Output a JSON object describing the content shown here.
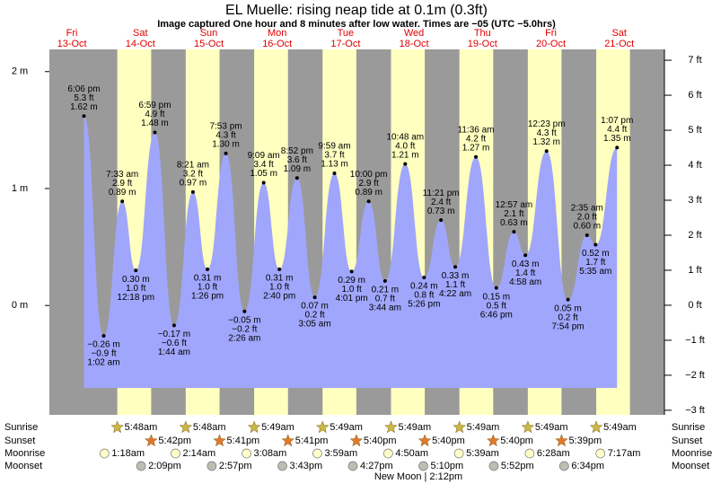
{
  "chart_data": {
    "type": "area",
    "title": "EL Muelle: rising  neap tide at 0.1m (0.3ft)",
    "subtitle": "Image captured One hour and 8 minutes after low water. Times are −05 (UTC −5.0hrs)",
    "ylim": [
      -0.92,
      2.19
    ],
    "yticks": [
      {
        "value": 2,
        "label": "2 m"
      },
      {
        "value": 1,
        "label": "1 m"
      },
      {
        "value": 0,
        "label": "0 m"
      }
    ],
    "y2lim": [
      -3.08,
      7.31
    ],
    "y2ticks": [
      {
        "value": 7,
        "label": "7 ft"
      },
      {
        "value": 6,
        "label": "6 ft"
      },
      {
        "value": 5,
        "label": "5 ft"
      },
      {
        "value": 4,
        "label": "4 ft"
      },
      {
        "value": 3,
        "label": "3 ft"
      },
      {
        "value": 2,
        "label": "2 ft"
      },
      {
        "value": 1,
        "label": "1 ft"
      },
      {
        "value": 0,
        "label": "0 ft"
      },
      {
        "value": -1,
        "label": "−1 ft"
      },
      {
        "value": -2,
        "label": "−2 ft"
      },
      {
        "value": -3,
        "label": "−3 ft"
      }
    ],
    "color": "#a0a6fb",
    "row_labels": {
      "sunrise": "Sunrise",
      "sunset": "Sunset",
      "moonrise": "Moonrise",
      "moonset": "Moonset"
    },
    "moon_phase": "New Moon | 2:12pm",
    "days": [
      {
        "day": "Fri",
        "date": "13-Oct",
        "tides": [
          {
            "time": "6:06 pm",
            "ft": {
              "value": 5.3,
              "label": "5.3 ft"
            },
            "m": {
              "value": 1.62,
              "label": "1.62 m"
            }
          }
        ]
      },
      {
        "day": "Sat",
        "date": "14-Oct",
        "sunrise": "5:48am",
        "sunset": "5:42pm",
        "moonrise": "1:18am",
        "moonset": "2:09pm",
        "tides": [
          {
            "time": "1:02 am",
            "ft": {
              "value": -0.9,
              "label": "−0.9 ft"
            },
            "m": {
              "value": -0.26,
              "label": "−0.26 m"
            }
          },
          {
            "time": "7:33 am",
            "ft": {
              "value": 2.9,
              "label": "2.9 ft"
            },
            "m": {
              "value": 0.89,
              "label": "0.89 m"
            }
          },
          {
            "time": "12:18 pm",
            "ft": {
              "value": 1.0,
              "label": "1.0 ft"
            },
            "m": {
              "value": 0.3,
              "label": "0.30 m"
            }
          },
          {
            "time": "6:59 pm",
            "ft": {
              "value": 4.9,
              "label": "4.9 ft"
            },
            "m": {
              "value": 1.48,
              "label": "1.48 m"
            }
          }
        ]
      },
      {
        "day": "Sun",
        "date": "15-Oct",
        "sunrise": "5:48am",
        "sunset": "5:41pm",
        "moonrise": "2:14am",
        "moonset": "2:57pm",
        "tides": [
          {
            "time": "1:44 am",
            "ft": {
              "value": -0.6,
              "label": "−0.6 ft"
            },
            "m": {
              "value": -0.17,
              "label": "−0.17 m"
            }
          },
          {
            "time": "8:21 am",
            "ft": {
              "value": 3.2,
              "label": "3.2 ft"
            },
            "m": {
              "value": 0.97,
              "label": "0.97 m"
            }
          },
          {
            "time": "1:26 pm",
            "ft": {
              "value": 1.0,
              "label": "1.0 ft"
            },
            "m": {
              "value": 0.31,
              "label": "0.31 m"
            }
          },
          {
            "time": "7:53 pm",
            "ft": {
              "value": 4.3,
              "label": "4.3 ft"
            },
            "m": {
              "value": 1.3,
              "label": "1.30 m"
            }
          }
        ]
      },
      {
        "day": "Mon",
        "date": "16-Oct",
        "sunrise": "5:49am",
        "sunset": "5:41pm",
        "moonrise": "3:08am",
        "moonset": "3:43pm",
        "tides": [
          {
            "time": "2:26 am",
            "ft": {
              "value": -0.2,
              "label": "−0.2 ft"
            },
            "m": {
              "value": -0.05,
              "label": "−0.05 m"
            }
          },
          {
            "time": "9:09 am",
            "ft": {
              "value": 3.4,
              "label": "3.4 ft"
            },
            "m": {
              "value": 1.05,
              "label": "1.05 m"
            }
          },
          {
            "time": "2:40 pm",
            "ft": {
              "value": 1.0,
              "label": "1.0 ft"
            },
            "m": {
              "value": 0.31,
              "label": "0.31 m"
            }
          },
          {
            "time": "8:52 pm",
            "ft": {
              "value": 3.6,
              "label": "3.6 ft"
            },
            "m": {
              "value": 1.09,
              "label": "1.09 m"
            }
          }
        ]
      },
      {
        "day": "Tue",
        "date": "17-Oct",
        "sunrise": "5:49am",
        "sunset": "5:40pm",
        "moonrise": "3:59am",
        "moonset": "4:27pm",
        "tides": [
          {
            "time": "3:05 am",
            "ft": {
              "value": 0.2,
              "label": "0.2 ft"
            },
            "m": {
              "value": 0.07,
              "label": "0.07 m"
            }
          },
          {
            "time": "9:59 am",
            "ft": {
              "value": 3.7,
              "label": "3.7 ft"
            },
            "m": {
              "value": 1.13,
              "label": "1.13 m"
            }
          },
          {
            "time": "4:01 pm",
            "ft": {
              "value": 1.0,
              "label": "1.0 ft"
            },
            "m": {
              "value": 0.29,
              "label": "0.29 m"
            }
          },
          {
            "time": "10:00 pm",
            "ft": {
              "value": 2.9,
              "label": "2.9 ft"
            },
            "m": {
              "value": 0.89,
              "label": "0.89 m"
            }
          }
        ]
      },
      {
        "day": "Wed",
        "date": "18-Oct",
        "sunrise": "5:49am",
        "sunset": "5:40pm",
        "moonrise": "4:50am",
        "moonset": "5:10pm",
        "tides": [
          {
            "time": "3:44 am",
            "ft": {
              "value": 0.7,
              "label": "0.7 ft"
            },
            "m": {
              "value": 0.21,
              "label": "0.21 m"
            }
          },
          {
            "time": "10:48 am",
            "ft": {
              "value": 4.0,
              "label": "4.0 ft"
            },
            "m": {
              "value": 1.21,
              "label": "1.21 m"
            }
          },
          {
            "time": "5:26 pm",
            "ft": {
              "value": 0.8,
              "label": "0.8 ft"
            },
            "m": {
              "value": 0.24,
              "label": "0.24 m"
            }
          },
          {
            "time": "11:21 pm",
            "ft": {
              "value": 2.4,
              "label": "2.4 ft"
            },
            "m": {
              "value": 0.73,
              "label": "0.73 m"
            }
          }
        ]
      },
      {
        "day": "Thu",
        "date": "19-Oct",
        "sunrise": "5:49am",
        "sunset": "5:40pm",
        "moonrise": "5:39am",
        "moonset": "5:52pm",
        "tides": [
          {
            "time": "4:22 am",
            "ft": {
              "value": 1.1,
              "label": "1.1 ft"
            },
            "m": {
              "value": 0.33,
              "label": "0.33 m"
            }
          },
          {
            "time": "11:36 am",
            "ft": {
              "value": 4.2,
              "label": "4.2 ft"
            },
            "m": {
              "value": 1.27,
              "label": "1.27 m"
            }
          },
          {
            "time": "6:46 pm",
            "ft": {
              "value": 0.5,
              "label": "0.5 ft"
            },
            "m": {
              "value": 0.15,
              "label": "0.15 m"
            }
          }
        ]
      },
      {
        "day": "Fri",
        "date": "20-Oct",
        "sunrise": "5:49am",
        "sunset": "5:39pm",
        "moonrise": "6:28am",
        "moonset": "6:34pm",
        "tides": [
          {
            "time": "12:57 am",
            "ft": {
              "value": 2.1,
              "label": "2.1 ft"
            },
            "m": {
              "value": 0.63,
              "label": "0.63 m"
            }
          },
          {
            "time": "4:58 am",
            "ft": {
              "value": 1.4,
              "label": "1.4 ft"
            },
            "m": {
              "value": 0.43,
              "label": "0.43 m"
            }
          },
          {
            "time": "12:23 pm",
            "ft": {
              "value": 4.3,
              "label": "4.3 ft"
            },
            "m": {
              "value": 1.32,
              "label": "1.32 m"
            }
          },
          {
            "time": "7:54 pm",
            "ft": {
              "value": 0.2,
              "label": "0.2 ft"
            },
            "m": {
              "value": 0.05,
              "label": "0.05 m"
            }
          }
        ]
      },
      {
        "day": "Sat",
        "date": "21-Oct",
        "sunrise": "5:49am",
        "moonrise": "7:17am",
        "tides": [
          {
            "time": "2:35 am",
            "ft": {
              "value": 2.0,
              "label": "2.0 ft"
            },
            "m": {
              "value": 0.6,
              "label": "0.60 m"
            }
          },
          {
            "time": "5:35 am",
            "ft": {
              "value": 1.7,
              "label": "1.7 ft"
            },
            "m": {
              "value": 0.52,
              "label": "0.52 m"
            }
          },
          {
            "time": "1:07 pm",
            "ft": {
              "value": 4.4,
              "label": "4.4 ft"
            },
            "m": {
              "value": 1.35,
              "label": "1.35 m"
            }
          }
        ]
      }
    ]
  }
}
